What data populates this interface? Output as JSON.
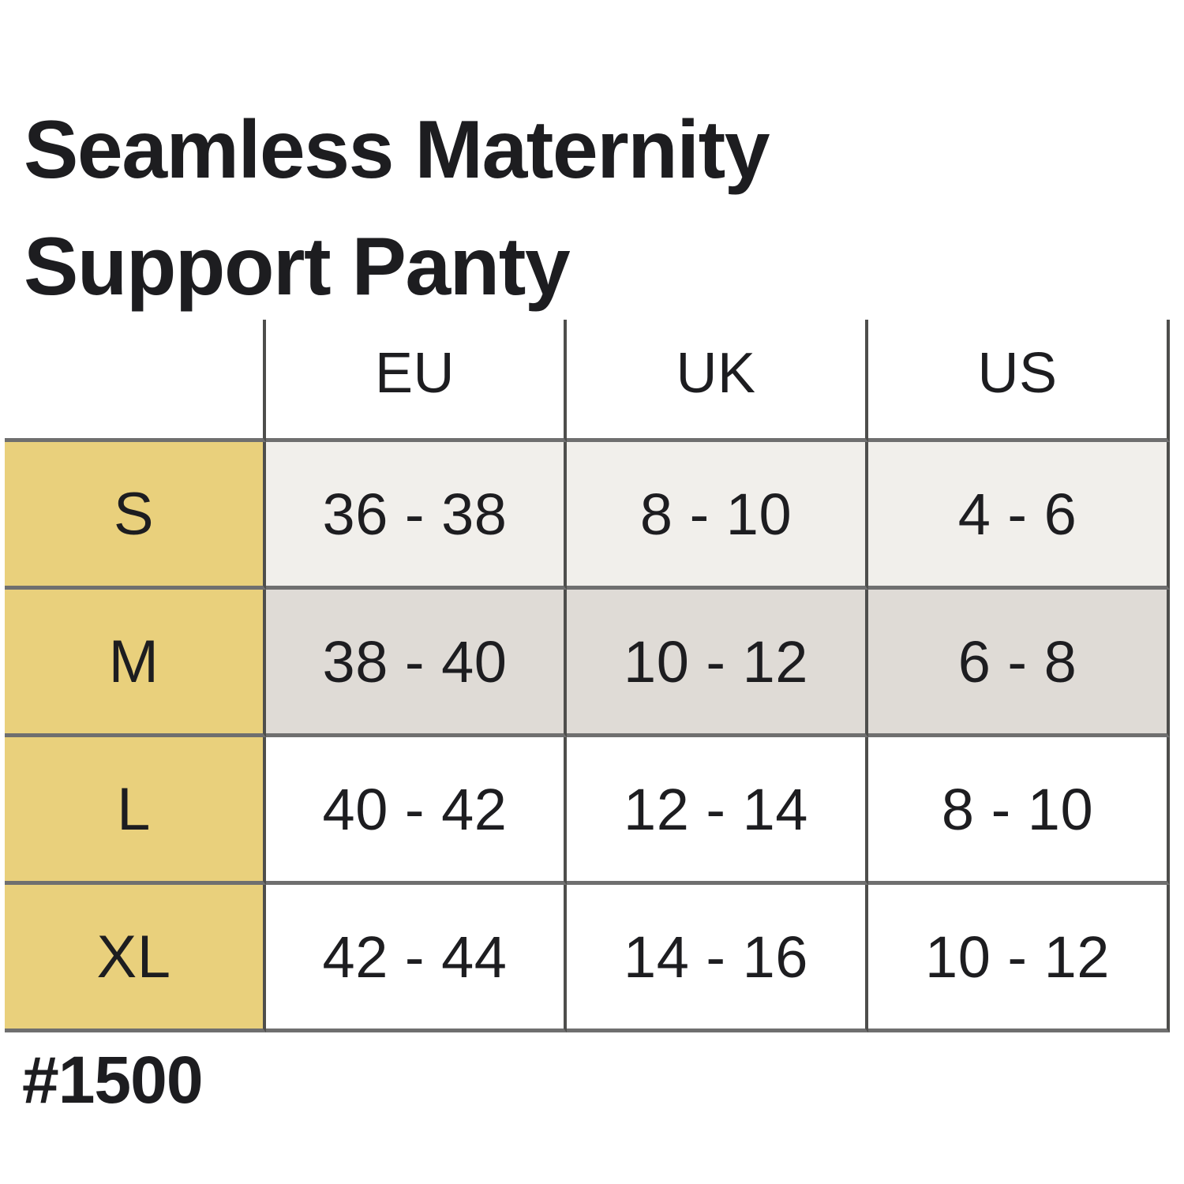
{
  "title": {
    "line1": "Seamless Maternity",
    "line2": "Support Panty"
  },
  "product_code": "#1500",
  "chart_data": {
    "type": "table",
    "title": "Seamless Maternity Support Panty",
    "columns": [
      "EU",
      "UK",
      "US"
    ],
    "row_labels": [
      "S",
      "M",
      "L",
      "XL"
    ],
    "rows": [
      [
        "36 - 38",
        "8 - 10",
        "4 - 6"
      ],
      [
        "38 - 40",
        "10 - 12",
        "6 - 8"
      ],
      [
        "40 - 42",
        "12 - 14",
        "8 - 10"
      ],
      [
        "42 - 44",
        "14 - 16",
        "10 - 12"
      ]
    ]
  },
  "colors": {
    "accent-yellow": "#e9d07c",
    "row-s-bg": "#f1efeb",
    "row-m-bg": "#dfdbd6",
    "line-h": "#6f6f6f",
    "line-v": "#4e4e4c",
    "text": "#1d1d20"
  }
}
